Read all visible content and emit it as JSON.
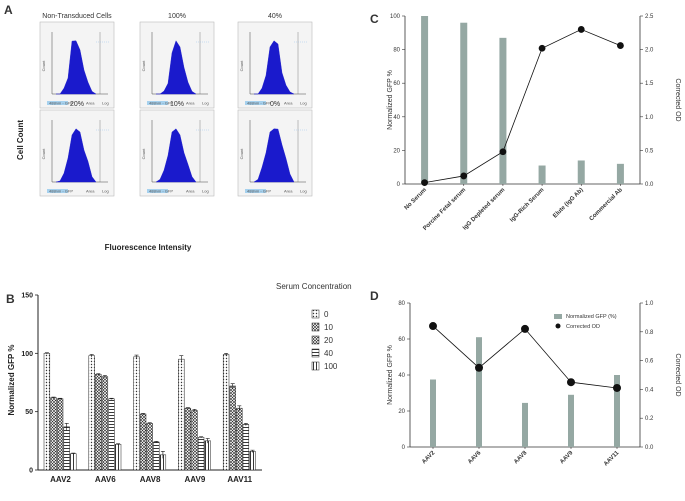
{
  "panels": {
    "a": "A",
    "b": "B",
    "c": "C",
    "d": "D"
  },
  "panel_a": {
    "x_label": "Fluorescence Intensity",
    "y_label": "Cell Count",
    "histograms": [
      {
        "title": "Non-Transduced Cells",
        "legend": "488nm - GFP",
        "area": "Area",
        "scale": "Log",
        "y_axis": "Count"
      },
      {
        "title": "100%",
        "legend": "488nm - GFP",
        "area": "Area",
        "scale": "Log",
        "y_axis": "Count"
      },
      {
        "title": "40%",
        "legend": "488nm - GFP",
        "area": "Area",
        "scale": "Log",
        "y_axis": "Count"
      },
      {
        "title": "20%",
        "legend": "488nm - GFP",
        "area": "Area",
        "scale": "Log",
        "y_axis": "Count"
      },
      {
        "title": "10%",
        "legend": "488nm - GFP",
        "area": "Area",
        "scale": "Log",
        "y_axis": "Count"
      },
      {
        "title": "0%",
        "legend": "488nm - GFP",
        "area": "Area",
        "scale": "Log",
        "y_axis": "Count"
      }
    ],
    "fill_color": "#1a1acc"
  },
  "chart_data": [
    {
      "panel": "B",
      "type": "bar",
      "ylabel": "Normalized GFP %",
      "ylim": [
        0,
        150
      ],
      "yticks": [
        0,
        50,
        100,
        150
      ],
      "categories": [
        "AAV2",
        "AAV6",
        "AAV8",
        "AAV9",
        "AAV11"
      ],
      "legend_title": "Serum Concentration",
      "series": [
        {
          "name": "0",
          "values": [
            100,
            98,
            97,
            95,
            99
          ],
          "errors": [
            0.5,
            1,
            1.5,
            3,
            1
          ]
        },
        {
          "name": "10",
          "values": [
            62,
            82,
            48,
            53,
            72
          ],
          "errors": [
            0.5,
            0.5,
            0.5,
            0.5,
            2
          ]
        },
        {
          "name": "20",
          "values": [
            61,
            80,
            40,
            51,
            53
          ],
          "errors": [
            0.5,
            1,
            0.5,
            1,
            2
          ]
        },
        {
          "name": "40",
          "values": [
            37,
            61,
            24,
            28,
            39
          ],
          "errors": [
            3,
            0.5,
            0.5,
            0.5,
            1
          ]
        },
        {
          "name": "100",
          "values": [
            14,
            22,
            13,
            25,
            16
          ],
          "errors": [
            0.5,
            0.5,
            3,
            2,
            1
          ]
        }
      ]
    },
    {
      "panel": "C",
      "type": "bar+line",
      "ylabel": "Normalized GFP %",
      "y2label": "Corrected OD",
      "ylim": [
        0,
        100
      ],
      "yticks": [
        0,
        20,
        40,
        60,
        80,
        100
      ],
      "y2lim": [
        0,
        2.5
      ],
      "y2ticks": [
        "0.0",
        "0.5",
        "1.0",
        "1.5",
        "2.0",
        "2.5"
      ],
      "categories": [
        "No Serum",
        "Porcine Fetal serum",
        "IgG Depleted serum",
        "IgG-Rich Serum",
        "Elute (IgG Ab)",
        "Commercial Ab"
      ],
      "bars": [
        100,
        96,
        87,
        11,
        14,
        12
      ],
      "line": [
        0.02,
        0.12,
        0.48,
        2.02,
        2.3,
        2.06
      ],
      "bar_color": "#95a8a3"
    },
    {
      "panel": "D",
      "type": "bar+line",
      "ylabel": "Normalized GFP %",
      "y2label": "Corrected OD",
      "ylim": [
        0,
        80
      ],
      "yticks": [
        0,
        20,
        40,
        60,
        80
      ],
      "y2lim": [
        0,
        1.0
      ],
      "y2ticks": [
        "0.0",
        "0.2",
        "0.4",
        "0.6",
        "0.8",
        "1.0"
      ],
      "categories": [
        "AAV2",
        "AAV6",
        "AAV8",
        "AAV9",
        "AAV11"
      ],
      "bars": [
        37.5,
        61,
        24.5,
        29,
        40
      ],
      "line": [
        0.84,
        0.55,
        0.82,
        0.45,
        0.41
      ],
      "legend": [
        "Normalized GFP (%)",
        "Corrected OD"
      ],
      "bar_color": "#95a8a3"
    }
  ]
}
